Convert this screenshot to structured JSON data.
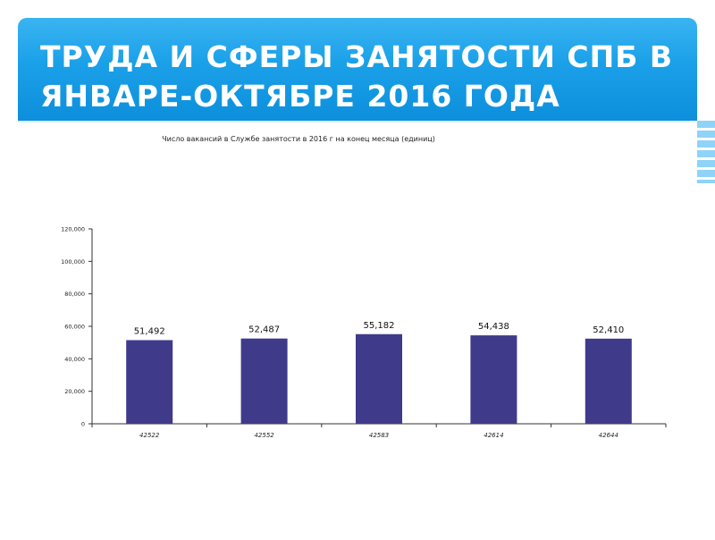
{
  "slide": {
    "title_line1": "ТРУДА И СФЕРЫ ЗАНЯТОСТИ  СПБ В",
    "title_line2": "ЯНВАРЕ-ОКТЯБРЕ 2016 ГОДА"
  },
  "colors": {
    "banner": "#1aa0e8",
    "bar": "#3f3a8a"
  },
  "chart_data": {
    "type": "bar",
    "title": "Число вакансий в Службе занятости в 2016 г на конец месяца (единиц)",
    "categories": [
      "42522",
      "42552",
      "42583",
      "42614",
      "42644"
    ],
    "values": [
      51492,
      52487,
      55182,
      54438,
      52410
    ],
    "value_labels": [
      "51,492",
      "52,487",
      "55,182",
      "54,438",
      "52,410"
    ],
    "yticks": [
      "0",
      "20,000",
      "40,000",
      "60,000",
      "80,000",
      "100,000",
      "120,000"
    ],
    "ylim": [
      0,
      120000
    ],
    "grid": false,
    "legend": "none"
  }
}
